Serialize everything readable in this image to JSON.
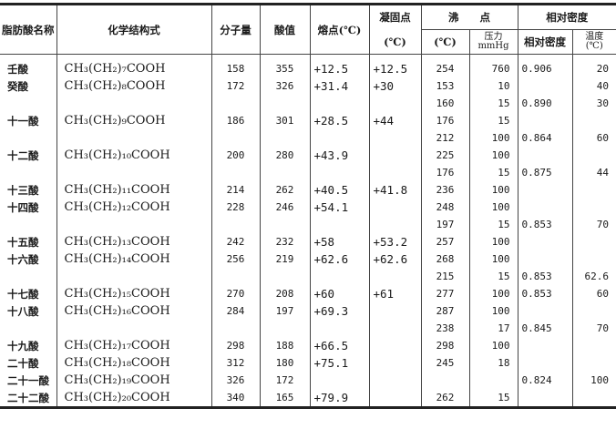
{
  "headers": {
    "name": "脂肪酸名称",
    "formula": "化学结构式",
    "mw": "分子量",
    "acid_value": "酸值",
    "melting_point": "熔点(℃)",
    "freezing_point": "凝固点",
    "freezing_unit": "(℃)",
    "boiling_point": "沸　　点",
    "bp_temp": "(℃)",
    "bp_pressure": "压力",
    "bp_pressure_unit": "mmHg",
    "density_group": "相对密度",
    "density": "相对密度",
    "temp": "温度",
    "temp_unit": "(℃)"
  },
  "rows": [
    {
      "name": "壬酸",
      "formula": "CH₃(CH₂)₇COOH",
      "mw": "158",
      "acid": "355",
      "mp": "+12.5",
      "fp": "+12.5",
      "bp": "254",
      "p": "760",
      "d": "0.906",
      "t": "20"
    },
    {
      "name": "癸酸",
      "formula": "CH₃(CH₂)₈COOH",
      "mw": "172",
      "acid": "326",
      "mp": "+31.4",
      "fp": "+30",
      "bp": "153",
      "p": "10",
      "d": "",
      "t": "40"
    },
    {
      "name": "",
      "formula": "",
      "mw": "",
      "acid": "",
      "mp": "",
      "fp": "",
      "bp": "160",
      "p": "15",
      "d": "0.890",
      "t": "30"
    },
    {
      "name": "十一酸",
      "formula": "CH₃(CH₂)₉COOH",
      "mw": "186",
      "acid": "301",
      "mp": "+28.5",
      "fp": "+44",
      "bp": "176",
      "p": "15",
      "d": "",
      "t": ""
    },
    {
      "name": "",
      "formula": "",
      "mw": "",
      "acid": "",
      "mp": "",
      "fp": "",
      "bp": "212",
      "p": "100",
      "d": "0.864",
      "t": "60"
    },
    {
      "name": "十二酸",
      "formula": "CH₃(CH₂)₁₀COOH",
      "mw": "200",
      "acid": "280",
      "mp": "+43.9",
      "fp": "",
      "bp": "225",
      "p": "100",
      "d": "",
      "t": ""
    },
    {
      "name": "",
      "formula": "",
      "mw": "",
      "acid": "",
      "mp": "",
      "fp": "",
      "bp": "176",
      "p": "15",
      "d": "0.875",
      "t": "44"
    },
    {
      "name": "十三酸",
      "formula": "CH₃(CH₂)₁₁COOH",
      "mw": "214",
      "acid": "262",
      "mp": "+40.5",
      "fp": "+41.8",
      "bp": "236",
      "p": "100",
      "d": "",
      "t": ""
    },
    {
      "name": "十四酸",
      "formula": "CH₃(CH₂)₁₂COOH",
      "mw": "228",
      "acid": "246",
      "mp": "+54.1",
      "fp": "",
      "bp": "248",
      "p": "100",
      "d": "",
      "t": ""
    },
    {
      "name": "",
      "formula": "",
      "mw": "",
      "acid": "",
      "mp": "",
      "fp": "",
      "bp": "197",
      "p": "15",
      "d": "0.853",
      "t": "70"
    },
    {
      "name": "十五酸",
      "formula": "CH₃(CH₂)₁₃COOH",
      "mw": "242",
      "acid": "232",
      "mp": "+58",
      "fp": "+53.2",
      "bp": "257",
      "p": "100",
      "d": "",
      "t": ""
    },
    {
      "name": "十六酸",
      "formula": "CH₃(CH₂)₁₄COOH",
      "mw": "256",
      "acid": "219",
      "mp": "+62.6",
      "fp": "+62.6",
      "bp": "268",
      "p": "100",
      "d": "",
      "t": ""
    },
    {
      "name": "",
      "formula": "",
      "mw": "",
      "acid": "",
      "mp": "",
      "fp": "",
      "bp": "215",
      "p": "15",
      "d": "0.853",
      "t": "62.6"
    },
    {
      "name": "十七酸",
      "formula": "CH₃(CH₂)₁₅COOH",
      "mw": "270",
      "acid": "208",
      "mp": "+60",
      "fp": "+61",
      "bp": "277",
      "p": "100",
      "d": "0.853",
      "t": "60"
    },
    {
      "name": "十八酸",
      "formula": "CH₃(CH₂)₁₆COOH",
      "mw": "284",
      "acid": "197",
      "mp": "+69.3",
      "fp": "",
      "bp": "287",
      "p": "100",
      "d": "",
      "t": ""
    },
    {
      "name": "",
      "formula": "",
      "mw": "",
      "acid": "",
      "mp": "",
      "fp": "",
      "bp": "238",
      "p": "17",
      "d": "0.845",
      "t": "70"
    },
    {
      "name": "十九酸",
      "formula": "CH₃(CH₂)₁₇COOH",
      "mw": "298",
      "acid": "188",
      "mp": "+66.5",
      "fp": "",
      "bp": "298",
      "p": "100",
      "d": "",
      "t": ""
    },
    {
      "name": "二十酸",
      "formula": "CH₃(CH₂)₁₈COOH",
      "mw": "312",
      "acid": "180",
      "mp": "+75.1",
      "fp": "",
      "bp": "245",
      "p": "18",
      "d": "",
      "t": ""
    },
    {
      "name": "二十一酸",
      "formula": "CH₃(CH₂)₁₉COOH",
      "mw": "326",
      "acid": "172",
      "mp": "",
      "fp": "",
      "bp": "",
      "p": "",
      "d": "0.824",
      "t": "100"
    },
    {
      "name": "二十二酸",
      "formula": "CH₃(CH₂)₂₀COOH",
      "mw": "340",
      "acid": "165",
      "mp": "+79.9",
      "fp": "",
      "bp": "262",
      "p": "15",
      "d": "",
      "t": ""
    }
  ]
}
